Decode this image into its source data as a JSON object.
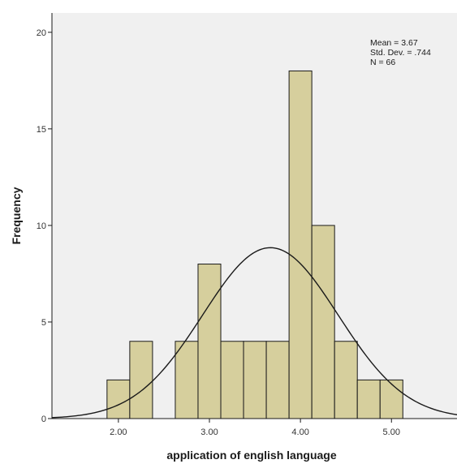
{
  "chart_data": {
    "type": "bar",
    "subtype": "histogram",
    "xlabel": "application of english language",
    "ylabel": "Frequency",
    "xlim": [
      1.27,
      5.72
    ],
    "ylim": [
      0,
      21
    ],
    "x_ticks": [
      2.0,
      3.0,
      4.0,
      5.0
    ],
    "x_tick_labels": [
      "2.00",
      "3.00",
      "4.00",
      "5.00"
    ],
    "y_ticks": [
      0,
      5,
      10,
      15,
      20
    ],
    "y_tick_labels": [
      "0",
      "5",
      "10",
      "15",
      "20"
    ],
    "bin_width": 0.25,
    "bins": [
      {
        "start": 1.875,
        "end": 2.125,
        "count": 2
      },
      {
        "start": 2.125,
        "end": 2.375,
        "count": 4
      },
      {
        "start": 2.375,
        "end": 2.625,
        "count": 0
      },
      {
        "start": 2.625,
        "end": 2.875,
        "count": 4
      },
      {
        "start": 2.875,
        "end": 3.125,
        "count": 8
      },
      {
        "start": 3.125,
        "end": 3.375,
        "count": 4
      },
      {
        "start": 3.375,
        "end": 3.625,
        "count": 4
      },
      {
        "start": 3.625,
        "end": 3.875,
        "count": 4
      },
      {
        "start": 3.875,
        "end": 4.125,
        "count": 18
      },
      {
        "start": 4.125,
        "end": 4.375,
        "count": 10
      },
      {
        "start": 4.375,
        "end": 4.625,
        "count": 4
      },
      {
        "start": 4.625,
        "end": 4.875,
        "count": 2
      },
      {
        "start": 4.875,
        "end": 5.125,
        "count": 2
      }
    ],
    "normal_curve": {
      "mean": 3.67,
      "std_dev": 0.744,
      "n": 66
    },
    "stats_lines": [
      "Mean = 3.67",
      "Std. Dev. = .744",
      "N = 66"
    ],
    "legend_position": "top-right",
    "grid": false,
    "colors": {
      "plot_background": "#f0f0f0",
      "bar_fill": "#d6cf9d",
      "bar_stroke": "#1a1a1a",
      "curve": "#1a1a1a"
    }
  }
}
